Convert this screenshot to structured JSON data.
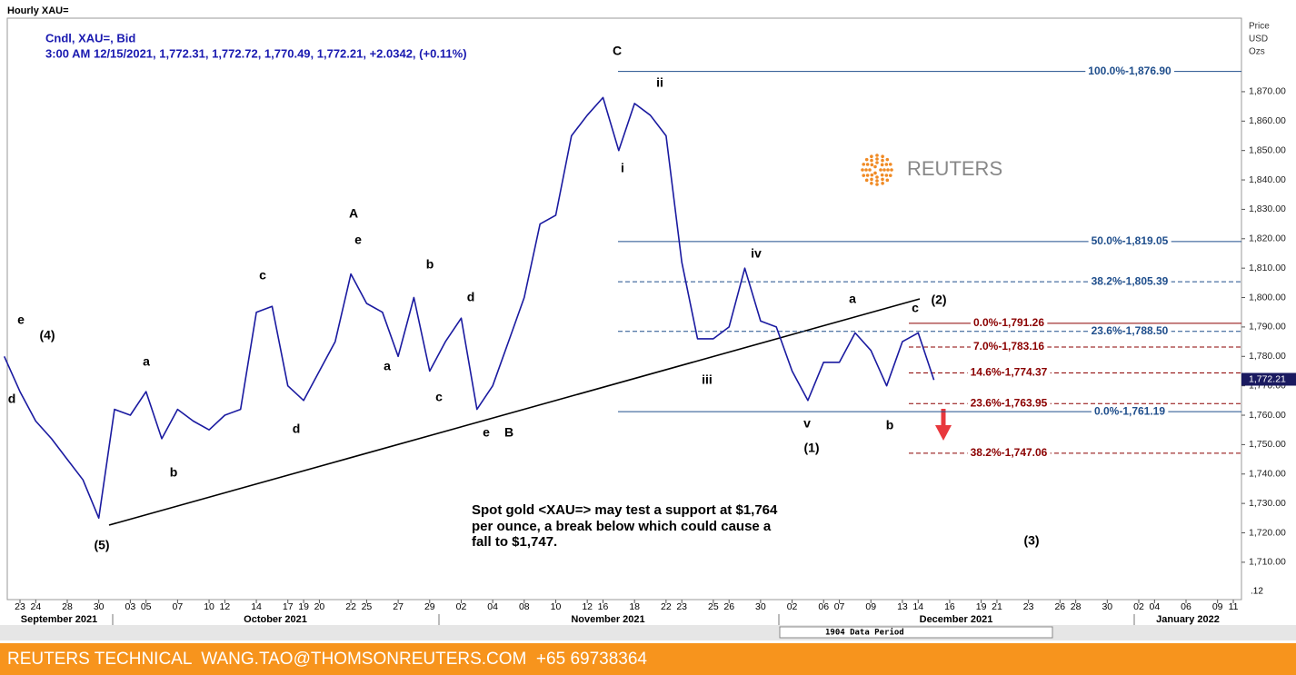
{
  "window_title": "Hourly XAU=",
  "axis_header": [
    "Price",
    "USD",
    "Ozs"
  ],
  "chart_data": {
    "type": "line",
    "legend_lines": [
      "Cndl, XAU=, Bid",
      "3:00 AM 12/15/2021, 1,772.31, 1,772.72, 1,770.49, 1,772.21, +2.0342, (+0.11%)"
    ],
    "categories": [
      null,
      "23",
      "24",
      null,
      "28",
      null,
      "30",
      null,
      "03",
      "05",
      null,
      "07",
      null,
      "10",
      "12",
      null,
      "14",
      null,
      "17",
      "19",
      "20",
      null,
      "22",
      "25",
      null,
      "27",
      null,
      "29",
      null,
      "02",
      null,
      "04",
      null,
      "08",
      null,
      "10",
      null,
      "12",
      "16",
      null,
      "18",
      null,
      "22",
      "23",
      null,
      "25",
      "26",
      null,
      "30",
      null,
      "02",
      null,
      "06",
      "07",
      null,
      "09",
      null,
      "13",
      "14",
      null,
      "16",
      null,
      "19",
      "21",
      null,
      "23",
      null,
      "26",
      "28",
      null,
      "30",
      null,
      "02",
      "04",
      null,
      "06",
      null,
      "09",
      "11"
    ],
    "months": [
      "September 2021",
      "October 2021",
      "November 2021",
      "December 2021",
      "January 2022"
    ],
    "color": "#1a1aa0",
    "values": [
      1780,
      1768,
      1758,
      1752,
      1745,
      1738,
      1725,
      1762,
      1760,
      1768,
      1752,
      1762,
      1758,
      1755,
      1760,
      1762,
      1795,
      1797,
      1770,
      1765,
      1775,
      1785,
      1808,
      1798,
      1795,
      1780,
      1800,
      1775,
      1785,
      1793,
      1762,
      1770,
      1785,
      1800,
      1825,
      1828,
      1855,
      1862,
      1868,
      1850,
      1866,
      1862,
      1855,
      1812,
      1786,
      1786,
      1790,
      1810,
      1792,
      1790,
      1775,
      1765,
      1778,
      1778,
      1788,
      1782,
      1770,
      1785,
      1788,
      1772,
      null,
      null,
      null,
      null,
      null,
      null,
      null,
      null,
      null,
      null,
      null,
      null,
      null,
      null,
      null,
      null,
      null,
      null,
      null
    ],
    "ylim": [
      1697.3,
      1895.0
    ],
    "yticks": [
      {
        "value": 1710,
        "label": "1,710.00"
      },
      {
        "value": 1720,
        "label": "1,720.00"
      },
      {
        "value": 1730,
        "label": "1,730.00"
      },
      {
        "value": 1740,
        "label": "1,740.00"
      },
      {
        "value": 1750,
        "label": "1,750.00"
      },
      {
        "value": 1760,
        "label": "1,760.00"
      },
      {
        "value": 1770,
        "label": "1,770.00"
      },
      {
        "value": 1780,
        "label": "1,780.00"
      },
      {
        "value": 1790,
        "label": "1,790.00"
      },
      {
        "value": 1800,
        "label": "1,800.00"
      },
      {
        "value": 1810,
        "label": "1,810.00"
      },
      {
        "value": 1820,
        "label": "1,820.00"
      },
      {
        "value": 1830,
        "label": "1,830.00"
      },
      {
        "value": 1840,
        "label": "1,840.00"
      },
      {
        "value": 1850,
        "label": "1,850.00"
      },
      {
        "value": 1860,
        "label": "1,860.00"
      },
      {
        "value": 1870,
        "label": "1,870.00"
      }
    ],
    "last_price": 1772.21,
    "last_price_label": "1,772.21",
    "scale_end": ".12",
    "fib_blue": {
      "color": "#1f4e8c",
      "levels": [
        {
          "label": "100.0%-1,876.90",
          "value": 1876.9,
          "style": "solid"
        },
        {
          "label": "50.0%-1,819.05",
          "value": 1819.05,
          "style": "solid"
        },
        {
          "label": "38.2%-1,805.39",
          "value": 1805.39,
          "style": "dashed"
        },
        {
          "label": "23.6%-1,788.50",
          "value": 1788.5,
          "style": "dashed"
        },
        {
          "label": "0.0%-1,761.19",
          "value": 1761.19,
          "style": "solid"
        }
      ]
    },
    "fib_red": {
      "color": "#8b0000",
      "levels": [
        {
          "label": "0.0%-1,791.26",
          "value": 1791.26,
          "style": "solid"
        },
        {
          "label": "7.0%-1,783.16",
          "value": 1783.16,
          "style": "dashed"
        },
        {
          "label": "14.6%-1,774.37",
          "value": 1774.37,
          "style": "dashed"
        },
        {
          "label": "23.6%-1,763.95",
          "value": 1763.95,
          "style": "dashed"
        },
        {
          "label": "38.2%-1,747.06",
          "value": 1747.06,
          "style": "dashed"
        }
      ]
    },
    "annotations": [
      "e",
      "(4)",
      "d",
      "a",
      "b",
      "(5)",
      "c",
      "d",
      "A",
      "e",
      "a",
      "b",
      "c",
      "d",
      "e",
      "B",
      "C",
      "i",
      "ii",
      "iii",
      "iv",
      "v",
      "(1)",
      "a",
      "b",
      "c",
      "(2)",
      "(3)"
    ],
    "note": [
      "Spot gold <XAU=> may test a support at $1,764",
      "per ounce, a break below which could cause a",
      "fall to $1,747."
    ],
    "logo": "REUTERS",
    "data_period": "1904 Data Period"
  },
  "footer": "REUTERS TECHNICAL  WANG.TAO@THOMSONREUTERS.COM  +65 69738364"
}
